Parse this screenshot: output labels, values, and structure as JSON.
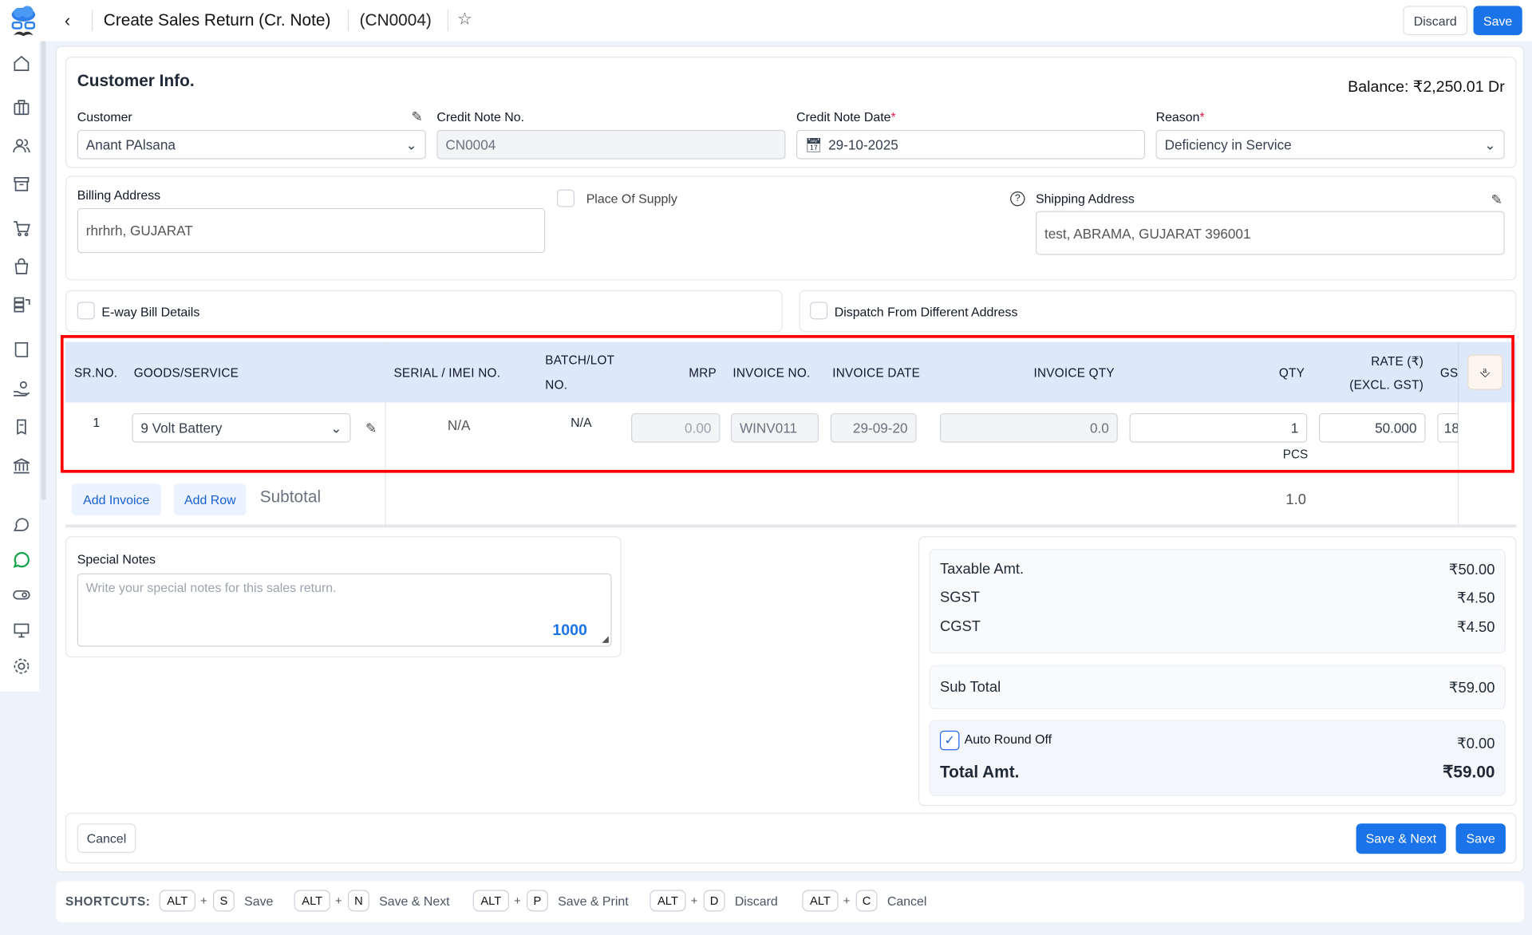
{
  "header": {
    "title": "Create Sales Return (Cr. Note)",
    "doc_no": "(CN0004)",
    "discard": "Discard",
    "save": "Save"
  },
  "sidebar": {
    "icons": [
      "home-icon",
      "briefcase-icon",
      "users-icon",
      "archive-icon",
      "cart-icon",
      "bag-icon",
      "stack-icon",
      "book-icon",
      "hand-coins-icon",
      "receipt-icon",
      "bank-icon",
      "card-icon",
      "chat-icon",
      "whatsapp-icon",
      "toggle-icon",
      "monitor-icon",
      "gear-icon"
    ]
  },
  "customer_info": {
    "title": "Customer Info.",
    "balance": "Balance: ₹2,250.01 Dr",
    "customer_label": "Customer",
    "customer_value": "Anant PAlsana",
    "credit_note_no_label": "Credit Note No.",
    "credit_note_no_value": "CN0004",
    "credit_note_date_label": "Credit Note Date",
    "credit_note_date_value": "29-10-2025",
    "reason_label": "Reason",
    "reason_value": "Deficiency in Service",
    "required": "*"
  },
  "address": {
    "billing_label": "Billing Address",
    "billing_value": "rhrhrh, GUJARAT",
    "place_of_supply": "Place Of Supply",
    "shipping_label": "Shipping Address",
    "shipping_value": "test, ABRAMA, GUJARAT 396001"
  },
  "options": {
    "eway": "E-way Bill Details",
    "dispatch": "Dispatch From Different Address"
  },
  "table": {
    "headers": {
      "sr": "SR.NO.",
      "goods": "GOODS/SERVICE",
      "serial": "SERIAL / IMEI NO.",
      "batch1": "BATCH/LOT",
      "batch2": "NO.",
      "mrp": "MRP",
      "invoice_no": "INVOICE NO.",
      "invoice_date": "INVOICE DATE",
      "invoice_qty": "INVOICE QTY",
      "qty": "QTY",
      "rate1": "RATE (₹)",
      "rate2": "(EXCL. GST)",
      "gst": "GS"
    },
    "rows": [
      {
        "sr": "1",
        "goods": "9 Volt Battery",
        "serial": "N/A",
        "batch": "N/A",
        "mrp": "0.00",
        "invoice_no": "WINV011",
        "invoice_date": "29-09-20",
        "invoice_qty": "0.0",
        "qty": "1",
        "unit": "PCS",
        "rate": "50.000",
        "gst": "18"
      }
    ],
    "add_invoice": "Add Invoice",
    "add_row": "Add Row",
    "subtotal_label": "Subtotal",
    "subtotal_qty": "1.0"
  },
  "notes": {
    "label": "Special Notes",
    "placeholder": "Write your special notes for this sales return.",
    "counter": "1000"
  },
  "totals": {
    "taxable_label": "Taxable Amt.",
    "taxable": "₹50.00",
    "sgst_label": "SGST",
    "sgst": "₹4.50",
    "cgst_label": "CGST",
    "cgst": "₹4.50",
    "subtotal_label": "Sub Total",
    "subtotal": "₹59.00",
    "round_label": "Auto Round Off",
    "round": "₹0.00",
    "round_checked": true,
    "total_label": "Total Amt.",
    "total": "₹59.00"
  },
  "footer": {
    "cancel": "Cancel",
    "save_next": "Save & Next",
    "save": "Save"
  },
  "shortcuts": {
    "label": "SHORTCUTS:",
    "items": [
      {
        "k1": "ALT",
        "k2": "S",
        "action": "Save"
      },
      {
        "k1": "ALT",
        "k2": "N",
        "action": "Save & Next"
      },
      {
        "k1": "ALT",
        "k2": "P",
        "action": "Save & Print"
      },
      {
        "k1": "ALT",
        "k2": "D",
        "action": "Discard"
      },
      {
        "k1": "ALT",
        "k2": "C",
        "action": "Cancel"
      }
    ]
  },
  "colors": {
    "accent": "#1a73e8",
    "header_bg": "#dde8fb",
    "highlight": "#ff0000",
    "required": "#e11d48"
  }
}
